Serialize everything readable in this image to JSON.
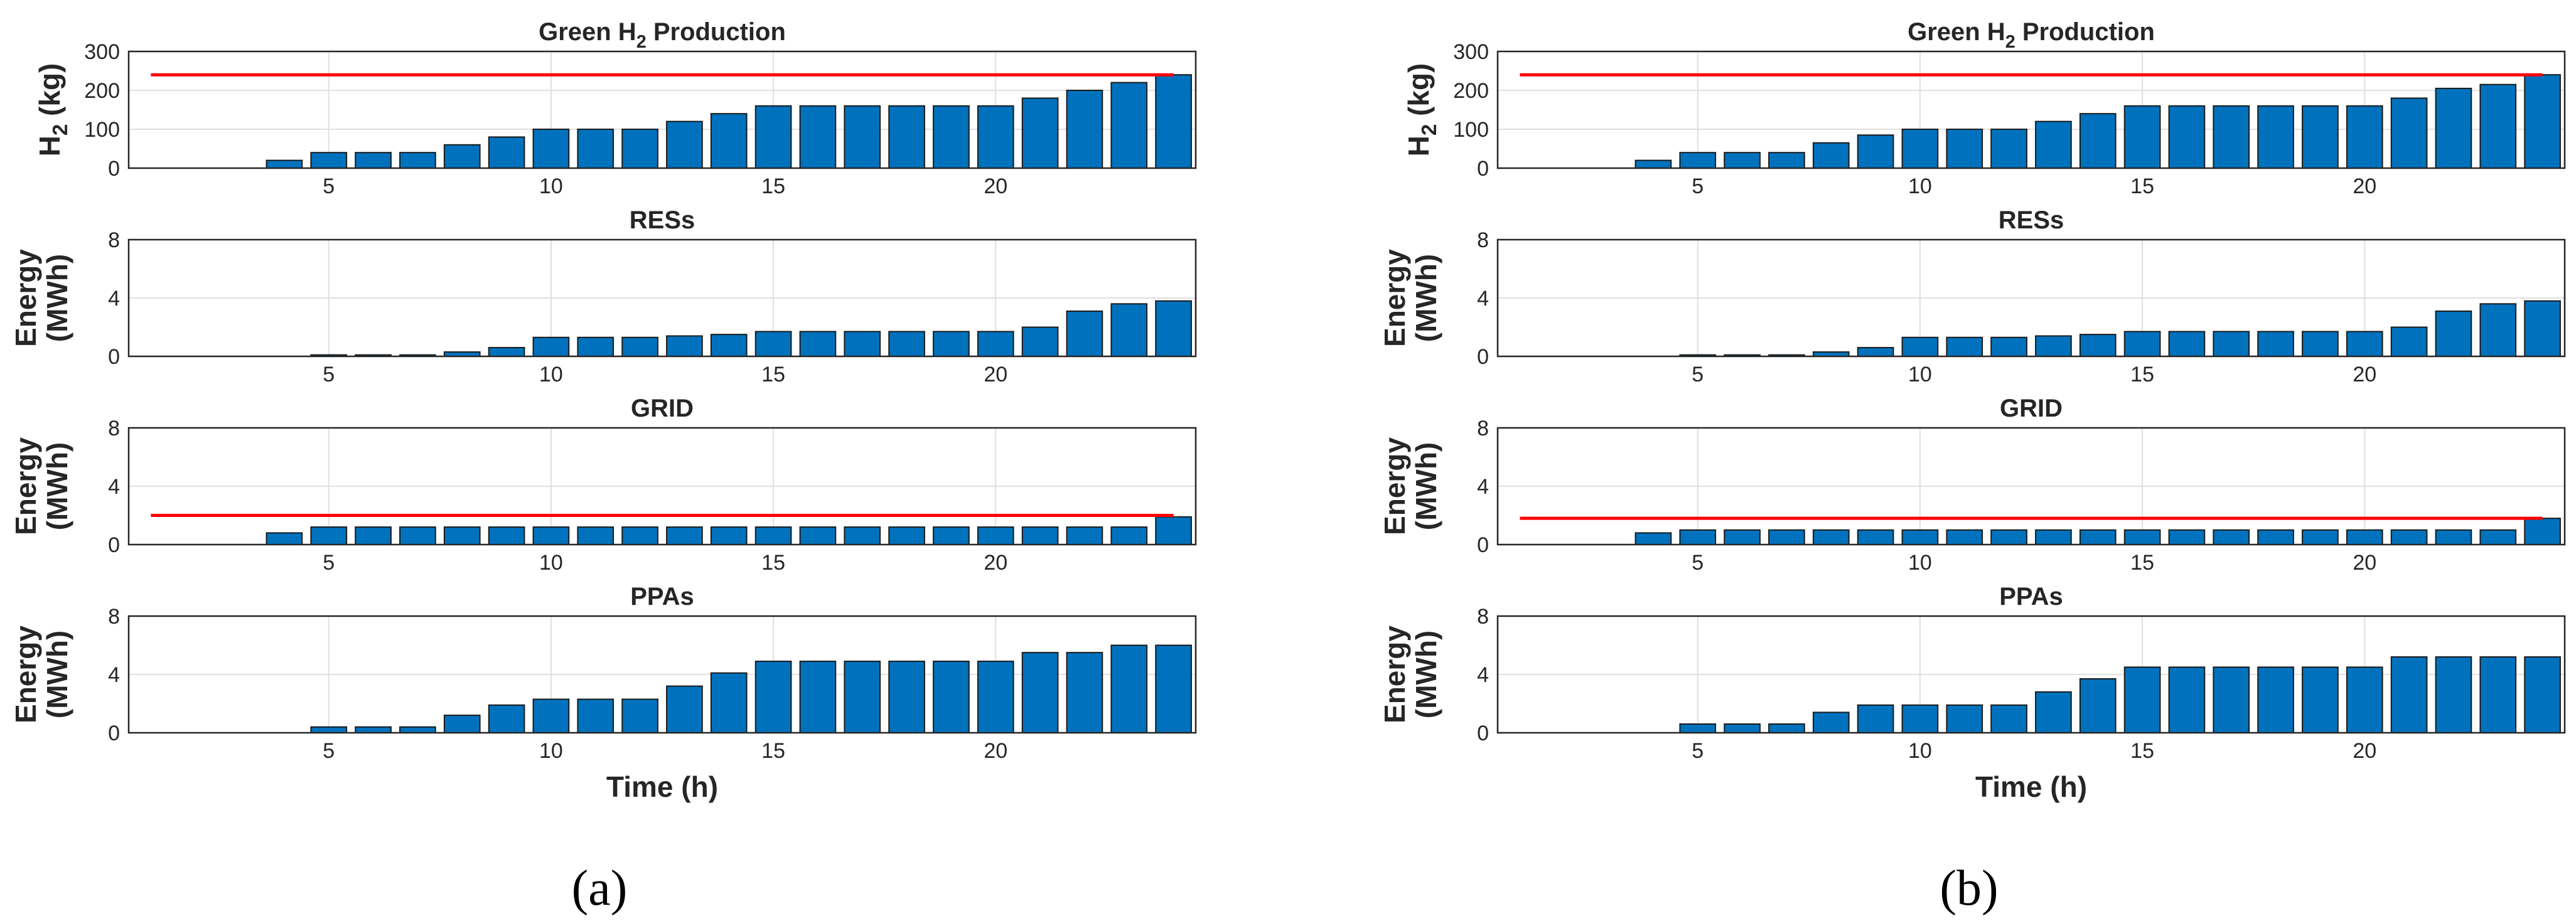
{
  "colors": {
    "bar": "#0072BD",
    "limit": "#FF0000"
  },
  "panel_labels": [
    "(a)",
    "(b)"
  ],
  "chart_data": [
    {
      "type": "bar",
      "panel": "(a)",
      "title": "Green H2 Production",
      "xlabel": "",
      "ylabel": "H2 (kg)",
      "x": [
        1,
        2,
        3,
        4,
        5,
        6,
        7,
        8,
        9,
        10,
        11,
        12,
        13,
        14,
        15,
        16,
        17,
        18,
        19,
        20,
        21,
        22,
        23,
        24
      ],
      "values": [
        0,
        0,
        0,
        20,
        40,
        40,
        40,
        60,
        80,
        100,
        100,
        100,
        120,
        140,
        160,
        160,
        160,
        160,
        160,
        160,
        180,
        200,
        220,
        240
      ],
      "limit": 240,
      "xlim": [
        0.5,
        24.5
      ],
      "ylim": [
        0,
        300
      ],
      "xticks": [
        5,
        10,
        15,
        20
      ],
      "yticks": [
        0,
        100,
        200,
        300
      ],
      "grid": true
    },
    {
      "type": "bar",
      "panel": "(a)",
      "title": "RESs",
      "xlabel": "",
      "ylabel": "Energy (MWh)",
      "x": [
        1,
        2,
        3,
        4,
        5,
        6,
        7,
        8,
        9,
        10,
        11,
        12,
        13,
        14,
        15,
        16,
        17,
        18,
        19,
        20,
        21,
        22,
        23,
        24
      ],
      "values": [
        0,
        0,
        0,
        0,
        0.1,
        0.1,
        0.1,
        0.3,
        0.6,
        1.3,
        1.3,
        1.3,
        1.4,
        1.5,
        1.7,
        1.7,
        1.7,
        1.7,
        1.7,
        1.7,
        2.0,
        3.1,
        3.6,
        3.8
      ],
      "xlim": [
        0.5,
        24.5
      ],
      "ylim": [
        0,
        8
      ],
      "xticks": [
        5,
        10,
        15,
        20
      ],
      "yticks": [
        0,
        4,
        8
      ],
      "grid": true
    },
    {
      "type": "bar",
      "panel": "(a)",
      "title": "GRID",
      "xlabel": "",
      "ylabel": "Energy (MWh)",
      "x": [
        1,
        2,
        3,
        4,
        5,
        6,
        7,
        8,
        9,
        10,
        11,
        12,
        13,
        14,
        15,
        16,
        17,
        18,
        19,
        20,
        21,
        22,
        23,
        24
      ],
      "values": [
        0,
        0,
        0,
        0.8,
        1.2,
        1.2,
        1.2,
        1.2,
        1.2,
        1.2,
        1.2,
        1.2,
        1.2,
        1.2,
        1.2,
        1.2,
        1.2,
        1.2,
        1.2,
        1.2,
        1.2,
        1.2,
        1.2,
        1.9
      ],
      "limit": 2.0,
      "xlim": [
        0.5,
        24.5
      ],
      "ylim": [
        0,
        8
      ],
      "xticks": [
        5,
        10,
        15,
        20
      ],
      "yticks": [
        0,
        4,
        8
      ],
      "grid": true
    },
    {
      "type": "bar",
      "panel": "(a)",
      "title": "PPAs",
      "xlabel": "Time (h)",
      "ylabel": "Energy (MWh)",
      "x": [
        1,
        2,
        3,
        4,
        5,
        6,
        7,
        8,
        9,
        10,
        11,
        12,
        13,
        14,
        15,
        16,
        17,
        18,
        19,
        20,
        21,
        22,
        23,
        24
      ],
      "values": [
        0,
        0,
        0,
        0,
        0.4,
        0.4,
        0.4,
        1.2,
        1.9,
        2.3,
        2.3,
        2.3,
        3.2,
        4.1,
        4.9,
        4.9,
        4.9,
        4.9,
        4.9,
        4.9,
        5.5,
        5.5,
        6.0,
        6.0
      ],
      "xlim": [
        0.5,
        24.5
      ],
      "ylim": [
        0,
        8
      ],
      "xticks": [
        5,
        10,
        15,
        20
      ],
      "yticks": [
        0,
        4,
        8
      ],
      "grid": true
    },
    {
      "type": "bar",
      "panel": "(b)",
      "title": "Green H2 Production",
      "xlabel": "",
      "ylabel": "H2 (kg)",
      "x": [
        1,
        2,
        3,
        4,
        5,
        6,
        7,
        8,
        9,
        10,
        11,
        12,
        13,
        14,
        15,
        16,
        17,
        18,
        19,
        20,
        21,
        22,
        23,
        24
      ],
      "values": [
        0,
        0,
        0,
        20,
        40,
        40,
        40,
        65,
        85,
        100,
        100,
        100,
        120,
        140,
        160,
        160,
        160,
        160,
        160,
        160,
        180,
        205,
        215,
        240
      ],
      "limit": 240,
      "xlim": [
        0.5,
        24.5
      ],
      "ylim": [
        0,
        300
      ],
      "xticks": [
        5,
        10,
        15,
        20
      ],
      "yticks": [
        0,
        100,
        200,
        300
      ],
      "grid": true
    },
    {
      "type": "bar",
      "panel": "(b)",
      "title": "RESs",
      "xlabel": "",
      "ylabel": "Energy (MWh)",
      "x": [
        1,
        2,
        3,
        4,
        5,
        6,
        7,
        8,
        9,
        10,
        11,
        12,
        13,
        14,
        15,
        16,
        17,
        18,
        19,
        20,
        21,
        22,
        23,
        24
      ],
      "values": [
        0,
        0,
        0,
        0,
        0.1,
        0.1,
        0.1,
        0.3,
        0.6,
        1.3,
        1.3,
        1.3,
        1.4,
        1.5,
        1.7,
        1.7,
        1.7,
        1.7,
        1.7,
        1.7,
        2.0,
        3.1,
        3.6,
        3.8
      ],
      "xlim": [
        0.5,
        24.5
      ],
      "ylim": [
        0,
        8
      ],
      "xticks": [
        5,
        10,
        15,
        20
      ],
      "yticks": [
        0,
        4,
        8
      ],
      "grid": true
    },
    {
      "type": "bar",
      "panel": "(b)",
      "title": "GRID",
      "xlabel": "",
      "ylabel": "Energy (MWh)",
      "x": [
        1,
        2,
        3,
        4,
        5,
        6,
        7,
        8,
        9,
        10,
        11,
        12,
        13,
        14,
        15,
        16,
        17,
        18,
        19,
        20,
        21,
        22,
        23,
        24
      ],
      "values": [
        0,
        0,
        0,
        0.8,
        1.0,
        1.0,
        1.0,
        1.0,
        1.0,
        1.0,
        1.0,
        1.0,
        1.0,
        1.0,
        1.0,
        1.0,
        1.0,
        1.0,
        1.0,
        1.0,
        1.0,
        1.0,
        1.0,
        1.8
      ],
      "limit": 1.8,
      "xlim": [
        0.5,
        24.5
      ],
      "ylim": [
        0,
        8
      ],
      "xticks": [
        5,
        10,
        15,
        20
      ],
      "yticks": [
        0,
        4,
        8
      ],
      "grid": true
    },
    {
      "type": "bar",
      "panel": "(b)",
      "title": "PPAs",
      "xlabel": "Time (h)",
      "ylabel": "Energy (MWh)",
      "x": [
        1,
        2,
        3,
        4,
        5,
        6,
        7,
        8,
        9,
        10,
        11,
        12,
        13,
        14,
        15,
        16,
        17,
        18,
        19,
        20,
        21,
        22,
        23,
        24
      ],
      "values": [
        0,
        0,
        0,
        0,
        0.6,
        0.6,
        0.6,
        1.4,
        1.9,
        1.9,
        1.9,
        1.9,
        2.8,
        3.7,
        4.5,
        4.5,
        4.5,
        4.5,
        4.5,
        4.5,
        5.2,
        5.2,
        5.2,
        5.2
      ],
      "xlim": [
        0.5,
        24.5
      ],
      "ylim": [
        0,
        8
      ],
      "xticks": [
        5,
        10,
        15,
        20
      ],
      "yticks": [
        0,
        4,
        8
      ],
      "grid": true
    }
  ]
}
